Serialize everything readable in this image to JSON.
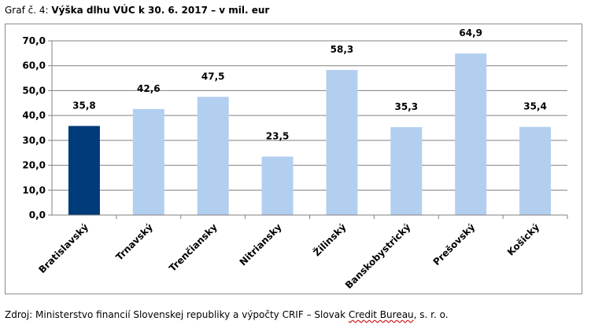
{
  "caption": {
    "prefix": "Graf č. 4: ",
    "title": "Výška dlhu VÚC k 30. 6. 2017 – v mil. eur"
  },
  "source": {
    "prefix": "Zdroj: Ministerstvo financií Slovenskej republiky a výpočty CRIF – Slovak ",
    "underlined": "Credit Bureau",
    "suffix": ", s. r. o."
  },
  "chart_data": {
    "type": "bar",
    "title": "Výška dlhu VÚC k 30. 6. 2017 – v mil. eur",
    "xlabel": "",
    "ylabel": "",
    "categories": [
      "Bratislavský",
      "Trnavský",
      "Trenčiansky",
      "Nitriansky",
      "Žilinský",
      "Banskobystrický",
      "Prešovský",
      "Košický"
    ],
    "values": [
      35.8,
      42.6,
      47.5,
      23.5,
      58.3,
      35.3,
      64.9,
      35.4
    ],
    "value_labels": [
      "35,8",
      "42,6",
      "47,5",
      "23,5",
      "58,3",
      "35,3",
      "64,9",
      "35,4"
    ],
    "ylim": [
      0,
      70
    ],
    "yticks": [
      0,
      10,
      20,
      30,
      40,
      50,
      60,
      70
    ],
    "ytick_labels": [
      "0,0",
      "10,0",
      "20,0",
      "30,0",
      "40,0",
      "50,0",
      "60,0",
      "70,0"
    ],
    "grid": true,
    "legend": "none",
    "colors": {
      "highlight": "#003b7a",
      "bar": "#b3cff0",
      "grid": "#808080",
      "axis": "#808080"
    },
    "highlight_index": 0
  }
}
